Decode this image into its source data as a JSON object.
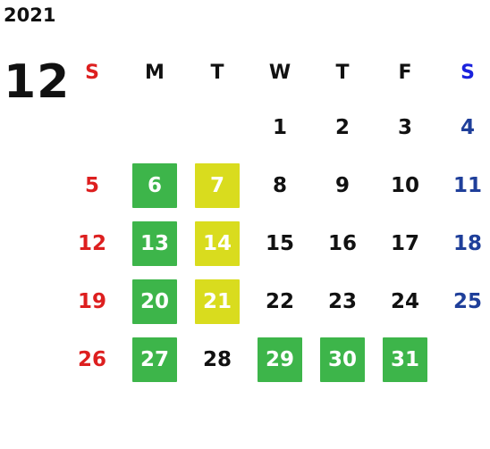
{
  "year": "2021",
  "month": "12",
  "colors": {
    "green": "#3db54a",
    "yellow": "#d9dc1e",
    "sunday": "#dd1f1f",
    "saturday": "#1f3f9a"
  },
  "weekdays": [
    "S",
    "M",
    "T",
    "W",
    "T",
    "F",
    "S"
  ],
  "weeks": [
    [
      {
        "label": "",
        "kind": "blank"
      },
      {
        "label": "",
        "kind": "blank"
      },
      {
        "label": "",
        "kind": "blank"
      },
      {
        "label": "1",
        "kind": "normal"
      },
      {
        "label": "2",
        "kind": "normal"
      },
      {
        "label": "3",
        "kind": "normal"
      },
      {
        "label": "4",
        "kind": "sat"
      }
    ],
    [
      {
        "label": "5",
        "kind": "sun"
      },
      {
        "label": "6",
        "kind": "green"
      },
      {
        "label": "7",
        "kind": "yellow"
      },
      {
        "label": "8",
        "kind": "normal"
      },
      {
        "label": "9",
        "kind": "normal"
      },
      {
        "label": "10",
        "kind": "normal"
      },
      {
        "label": "11",
        "kind": "sat"
      }
    ],
    [
      {
        "label": "12",
        "kind": "sun"
      },
      {
        "label": "13",
        "kind": "green"
      },
      {
        "label": "14",
        "kind": "yellow"
      },
      {
        "label": "15",
        "kind": "normal"
      },
      {
        "label": "16",
        "kind": "normal"
      },
      {
        "label": "17",
        "kind": "normal"
      },
      {
        "label": "18",
        "kind": "sat"
      }
    ],
    [
      {
        "label": "19",
        "kind": "sun"
      },
      {
        "label": "20",
        "kind": "green"
      },
      {
        "label": "21",
        "kind": "yellow"
      },
      {
        "label": "22",
        "kind": "normal"
      },
      {
        "label": "23",
        "kind": "normal"
      },
      {
        "label": "24",
        "kind": "normal"
      },
      {
        "label": "25",
        "kind": "sat"
      }
    ],
    [
      {
        "label": "26",
        "kind": "sun"
      },
      {
        "label": "27",
        "kind": "green"
      },
      {
        "label": "28",
        "kind": "normal"
      },
      {
        "label": "29",
        "kind": "green"
      },
      {
        "label": "30",
        "kind": "green"
      },
      {
        "label": "31",
        "kind": "green"
      },
      {
        "label": "",
        "kind": "blank"
      }
    ]
  ]
}
